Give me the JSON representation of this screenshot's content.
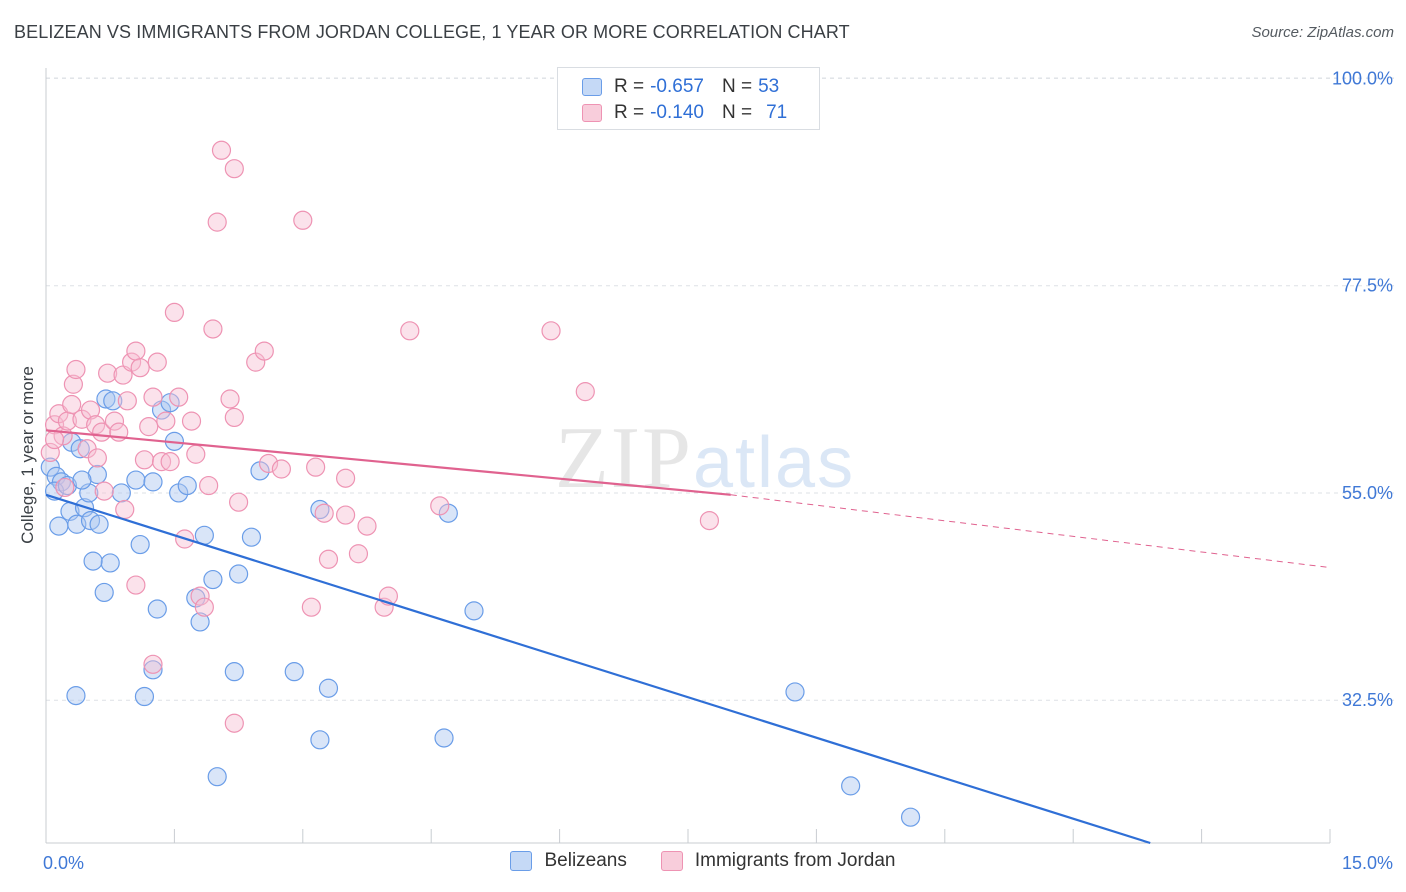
{
  "header": {
    "title": "BELIZEAN VS IMMIGRANTS FROM JORDAN COLLEGE, 1 YEAR OR MORE CORRELATION CHART",
    "source": "Source: ZipAtlas.com"
  },
  "watermark": {
    "zip": "ZIP",
    "atlas": "atlas"
  },
  "legend": {
    "rows": [
      {
        "r_label": "R =",
        "r_value": "-0.657",
        "n_label": "N =",
        "n_value": "53"
      },
      {
        "r_label": "R =",
        "r_value": "-0.140",
        "n_label": "N =",
        "n_value": "71"
      }
    ]
  },
  "chart_data": {
    "type": "scatter",
    "title": "BELIZEAN VS IMMIGRANTS FROM JORDAN COLLEGE, 1 YEAR OR MORE CORRELATION CHART",
    "xlabel": "",
    "ylabel": "College, 1 year or more",
    "xlim": [
      0,
      15
    ],
    "ylim": [
      17,
      102
    ],
    "x_tick_labels": [
      {
        "value": 0,
        "label": "0.0%"
      },
      {
        "value": 15,
        "label": "15.0%"
      }
    ],
    "y_tick_labels": [
      {
        "value": 100,
        "label": "100.0%"
      },
      {
        "value": 77.5,
        "label": "77.5%"
      },
      {
        "value": 55,
        "label": "55.0%"
      },
      {
        "value": 32.5,
        "label": "32.5%"
      }
    ],
    "grid": "horizontal dashed",
    "legend_position": "top-center",
    "colors": {
      "belizeans": "#2f6fd6",
      "jordan": "#e0628f"
    },
    "series": [
      {
        "name": "Belizeans",
        "color": "#5b8fe6",
        "trend": {
          "x": [
            0,
            12.9
          ],
          "y": [
            54.8,
            17
          ]
        },
        "points": [
          [
            0.05,
            57.8
          ],
          [
            0.12,
            56.8
          ],
          [
            0.18,
            56.2
          ],
          [
            0.1,
            55.2
          ],
          [
            0.25,
            55.8
          ],
          [
            0.3,
            60.5
          ],
          [
            0.4,
            59.8
          ],
          [
            0.28,
            53.0
          ],
          [
            0.36,
            51.6
          ],
          [
            0.45,
            53.4
          ],
          [
            0.52,
            52.0
          ],
          [
            0.62,
            51.6
          ],
          [
            0.5,
            55.0
          ],
          [
            0.6,
            57.0
          ],
          [
            0.7,
            65.2
          ],
          [
            0.78,
            65.0
          ],
          [
            0.75,
            47.4
          ],
          [
            0.68,
            44.2
          ],
          [
            0.88,
            55.0
          ],
          [
            1.05,
            56.4
          ],
          [
            1.1,
            49.4
          ],
          [
            1.25,
            56.2
          ],
          [
            1.35,
            64.0
          ],
          [
            1.45,
            64.8
          ],
          [
            1.5,
            60.6
          ],
          [
            1.55,
            55.0
          ],
          [
            1.65,
            55.8
          ],
          [
            1.75,
            43.6
          ],
          [
            1.8,
            41.0
          ],
          [
            1.85,
            50.4
          ],
          [
            1.95,
            45.6
          ],
          [
            2.25,
            46.2
          ],
          [
            2.4,
            50.2
          ],
          [
            2.5,
            57.4
          ],
          [
            1.3,
            42.4
          ],
          [
            1.25,
            35.8
          ],
          [
            1.15,
            32.9
          ],
          [
            2.2,
            35.6
          ],
          [
            2.9,
            35.6
          ],
          [
            3.3,
            33.8
          ],
          [
            3.2,
            28.2
          ],
          [
            2.0,
            24.2
          ],
          [
            3.2,
            53.2
          ],
          [
            4.7,
            52.8
          ],
          [
            5.0,
            42.2
          ],
          [
            4.65,
            28.4
          ],
          [
            8.75,
            33.4
          ],
          [
            9.4,
            23.2
          ],
          [
            10.1,
            19.8
          ],
          [
            0.35,
            33.0
          ],
          [
            0.42,
            56.4
          ],
          [
            0.15,
            51.4
          ],
          [
            0.55,
            47.6
          ]
        ]
      },
      {
        "name": "Immigrants from Jordan",
        "color": "#ef8fb1",
        "trend": {
          "x": [
            0,
            8.0,
            15.0
          ],
          "y": [
            61.8,
            54.8,
            46.9
          ],
          "solid_until": 8.0
        },
        "points": [
          [
            0.05,
            59.4
          ],
          [
            0.1,
            62.4
          ],
          [
            0.15,
            63.6
          ],
          [
            0.2,
            61.2
          ],
          [
            0.25,
            62.8
          ],
          [
            0.32,
            66.8
          ],
          [
            0.35,
            68.4
          ],
          [
            0.42,
            63.0
          ],
          [
            0.48,
            59.8
          ],
          [
            0.52,
            64.0
          ],
          [
            0.58,
            62.4
          ],
          [
            0.65,
            61.6
          ],
          [
            0.72,
            68.0
          ],
          [
            0.8,
            62.8
          ],
          [
            0.85,
            61.6
          ],
          [
            0.9,
            67.8
          ],
          [
            0.95,
            65.0
          ],
          [
            1.0,
            69.2
          ],
          [
            1.05,
            70.4
          ],
          [
            1.1,
            68.6
          ],
          [
            1.15,
            58.6
          ],
          [
            1.2,
            62.2
          ],
          [
            1.25,
            65.4
          ],
          [
            1.3,
            69.2
          ],
          [
            1.35,
            58.4
          ],
          [
            1.4,
            62.8
          ],
          [
            1.45,
            58.4
          ],
          [
            1.5,
            74.6
          ],
          [
            1.55,
            65.4
          ],
          [
            1.62,
            50.0
          ],
          [
            1.7,
            62.8
          ],
          [
            1.75,
            59.2
          ],
          [
            1.8,
            43.8
          ],
          [
            1.9,
            55.8
          ],
          [
            1.85,
            42.6
          ],
          [
            1.95,
            72.8
          ],
          [
            2.0,
            84.4
          ],
          [
            2.05,
            92.2
          ],
          [
            2.15,
            65.2
          ],
          [
            2.2,
            63.2
          ],
          [
            2.25,
            54.0
          ],
          [
            2.2,
            90.2
          ],
          [
            2.45,
            69.2
          ],
          [
            2.55,
            70.4
          ],
          [
            2.6,
            58.2
          ],
          [
            2.75,
            57.6
          ],
          [
            3.0,
            84.6
          ],
          [
            3.1,
            42.6
          ],
          [
            3.15,
            57.8
          ],
          [
            3.25,
            52.8
          ],
          [
            3.3,
            47.8
          ],
          [
            3.5,
            56.6
          ],
          [
            3.5,
            52.6
          ],
          [
            3.65,
            48.4
          ],
          [
            3.75,
            51.4
          ],
          [
            3.95,
            42.6
          ],
          [
            4.0,
            43.8
          ],
          [
            4.25,
            72.6
          ],
          [
            4.6,
            53.6
          ],
          [
            5.9,
            72.6
          ],
          [
            6.3,
            66.0
          ],
          [
            7.75,
            52.0
          ],
          [
            0.22,
            55.6
          ],
          [
            0.68,
            55.2
          ],
          [
            1.05,
            45.0
          ],
          [
            1.25,
            36.4
          ],
          [
            2.2,
            30.0
          ],
          [
            0.3,
            64.6
          ],
          [
            0.6,
            58.8
          ],
          [
            0.92,
            53.2
          ],
          [
            0.1,
            60.8
          ]
        ]
      }
    ]
  },
  "bottom_legend": {
    "items": [
      {
        "label": "Belizeans"
      },
      {
        "label": "Immigrants from Jordan"
      }
    ]
  }
}
